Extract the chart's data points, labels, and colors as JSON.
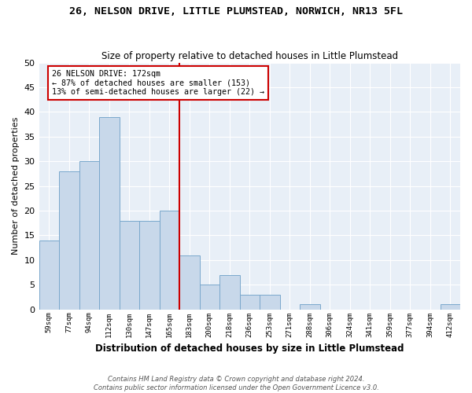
{
  "title": "26, NELSON DRIVE, LITTLE PLUMSTEAD, NORWICH, NR13 5FL",
  "subtitle": "Size of property relative to detached houses in Little Plumstead",
  "xlabel": "Distribution of detached houses by size in Little Plumstead",
  "ylabel": "Number of detached properties",
  "bar_color": "#c8d8ea",
  "bar_edge_color": "#7aa8cc",
  "categories": [
    "59sqm",
    "77sqm",
    "94sqm",
    "112sqm",
    "130sqm",
    "147sqm",
    "165sqm",
    "183sqm",
    "200sqm",
    "218sqm",
    "236sqm",
    "253sqm",
    "271sqm",
    "288sqm",
    "306sqm",
    "324sqm",
    "341sqm",
    "359sqm",
    "377sqm",
    "394sqm",
    "412sqm"
  ],
  "values": [
    14,
    28,
    30,
    39,
    18,
    18,
    20,
    11,
    5,
    7,
    3,
    3,
    0,
    1,
    0,
    0,
    0,
    0,
    0,
    0,
    1
  ],
  "ylim": [
    0,
    50
  ],
  "yticks": [
    0,
    5,
    10,
    15,
    20,
    25,
    30,
    35,
    40,
    45,
    50
  ],
  "property_line_x": 7,
  "annotation_text": "26 NELSON DRIVE: 172sqm\n← 87% of detached houses are smaller (153)\n13% of semi-detached houses are larger (22) →",
  "annotation_box_color": "#cc0000",
  "background_color": "#e8eff7",
  "footer_line1": "Contains HM Land Registry data © Crown copyright and database right 2024.",
  "footer_line2": "Contains public sector information licensed under the Open Government Licence v3.0."
}
